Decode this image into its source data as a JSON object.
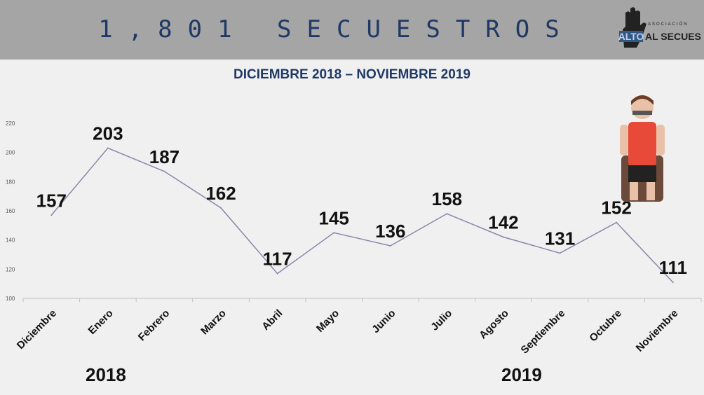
{
  "header": {
    "title": "1,801 SECUESTROS",
    "logo_text": [
      "ASOCIACIÓN",
      "ALTO",
      "AL SECUESTRO"
    ]
  },
  "colors": {
    "header_bg": "#a5a5a5",
    "title": "#1f3864",
    "line": "#8a86aa"
  },
  "chart_data": {
    "type": "line",
    "title": "DICIEMBRE 2018 – NOVIEMBRE 2019",
    "categories": [
      "Diciembre",
      "Enero",
      "Febrero",
      "Marzo",
      "Abril",
      "Mayo",
      "Junio",
      "Julio",
      "Agosto",
      "Septiembre",
      "Octubre",
      "Noviembre"
    ],
    "values": [
      157,
      203,
      187,
      162,
      117,
      145,
      136,
      158,
      142,
      131,
      152,
      111
    ],
    "ylim": [
      100,
      220
    ],
    "yticks": [
      100,
      120,
      140,
      160,
      180,
      200,
      220
    ],
    "year_labels": [
      "2018",
      "2019"
    ],
    "xlabel": "",
    "ylabel": "",
    "grid": false
  }
}
